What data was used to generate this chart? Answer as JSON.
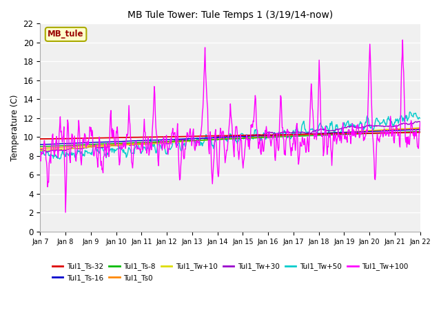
{
  "title": "MB Tule Tower: Tule Temps 1 (3/19/14-now)",
  "ylabel": "Temperature (C)",
  "ylim": [
    0,
    22
  ],
  "yticks": [
    0,
    2,
    4,
    6,
    8,
    10,
    12,
    14,
    16,
    18,
    20,
    22
  ],
  "xtick_labels": [
    "Jan 7",
    "Jan 8",
    "Jan 9",
    "Jan 10",
    "Jan 11",
    "Jan 12",
    "Jan 13",
    "Jan 14",
    "Jan 15",
    "Jan 16",
    "Jan 17",
    "Jan 18",
    "Jan 19",
    "Jan 20",
    "Jan 21",
    "Jan 22"
  ],
  "fig_facecolor": "#ffffff",
  "plot_facecolor": "#f0f0f0",
  "grid_color": "#ffffff",
  "legend_entries": [
    {
      "label": "Tul1_Ts-32",
      "color": "#dd0000"
    },
    {
      "label": "Tul1_Ts-16",
      "color": "#0000cc"
    },
    {
      "label": "Tul1_Ts-8",
      "color": "#00bb00"
    },
    {
      "label": "Tul1_Ts0",
      "color": "#ff8800"
    },
    {
      "label": "Tul1_Tw+10",
      "color": "#dddd00"
    },
    {
      "label": "Tul1_Tw+30",
      "color": "#9900cc"
    },
    {
      "label": "Tul1_Tw+50",
      "color": "#00cccc"
    },
    {
      "label": "Tul1_Tw+100",
      "color": "#ff00ff"
    }
  ],
  "annotation": {
    "text": "MB_tule",
    "fgcolor": "#990000",
    "bgcolor": "#ffffcc",
    "edgecolor": "#aaaa00"
  },
  "n_days": 15,
  "pts_per_day": 48,
  "seed": 12345
}
